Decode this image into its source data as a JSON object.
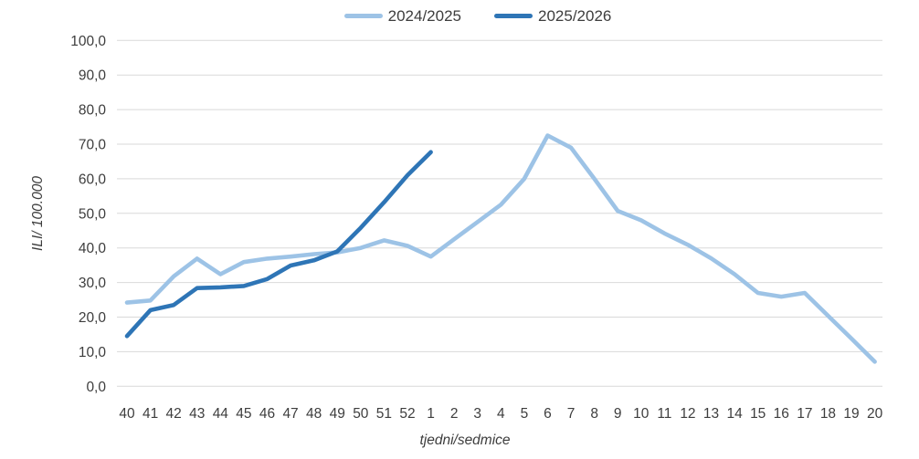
{
  "chart_data": {
    "type": "line",
    "title": "",
    "xlabel": "tjedni/sedmice",
    "ylabel": "ILI/ 100.000",
    "categories": [
      "40",
      "41",
      "42",
      "43",
      "44",
      "45",
      "46",
      "47",
      "48",
      "49",
      "50",
      "51",
      "52",
      "1",
      "2",
      "3",
      "4",
      "5",
      "6",
      "7",
      "8",
      "9",
      "10",
      "11",
      "12",
      "13",
      "14",
      "15",
      "16",
      "17",
      "18",
      "19",
      "20"
    ],
    "ylim": [
      0,
      100
    ],
    "ytick_step": 10,
    "ytick_labels": [
      "0,0",
      "10,0",
      "20,0",
      "30,0",
      "40,0",
      "50,0",
      "60,0",
      "70,0",
      "80,0",
      "90,0",
      "100,0"
    ],
    "grid": true,
    "legend_position": "top-center",
    "series": [
      {
        "name": "2024/2025",
        "color": "#9dc3e6",
        "values": [
          24.2,
          24.8,
          31.8,
          36.9,
          32.4,
          35.9,
          36.9,
          37.5,
          38.2,
          38.7,
          40.0,
          42.2,
          40.6,
          37.5,
          42.5,
          47.5,
          52.5,
          60.0,
          72.5,
          69.0,
          60.0,
          50.7,
          48.0,
          44.2,
          40.9,
          37.0,
          32.4,
          27.0,
          25.9,
          27.0,
          20.4,
          13.8,
          7.1
        ]
      },
      {
        "name": "2025/2026",
        "color": "#2e75b6",
        "values": [
          14.5,
          22.0,
          23.5,
          28.4,
          28.6,
          29.0,
          31.0,
          34.9,
          36.4,
          39.0,
          45.8,
          53.2,
          61.0,
          67.7
        ]
      }
    ]
  },
  "colors": {
    "gridline": "#d9d9d9",
    "text": "#3d3d3d",
    "background": "#ffffff"
  }
}
